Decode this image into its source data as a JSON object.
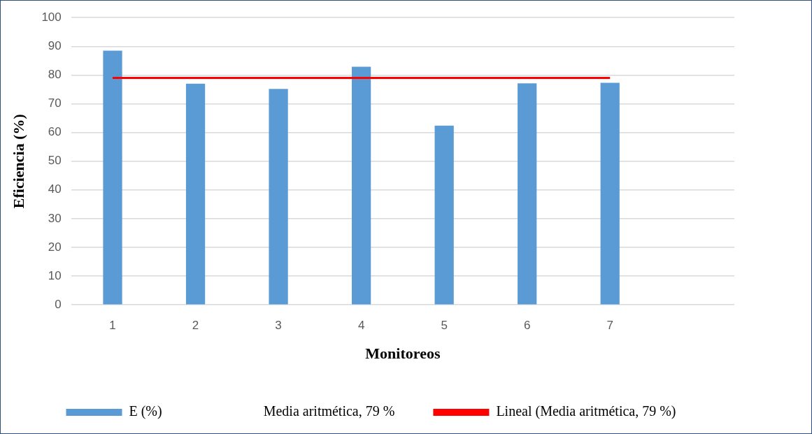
{
  "chart_data": {
    "type": "bar",
    "xlabel": "Monitoreos",
    "ylabel": "Eficiencia (%)",
    "categories": [
      "1",
      "2",
      "3",
      "4",
      "5",
      "6",
      "7",
      null
    ],
    "series": [
      {
        "name": "E (%)",
        "color": "#5b9bd5",
        "values": [
          88.5,
          77,
          75.2,
          82.9,
          62.4,
          77.1,
          77.3,
          null
        ]
      },
      {
        "name": "Lineal (Media aritmética, 79 %)",
        "type": "line",
        "color": "#ff0000",
        "values": [
          79,
          79,
          79,
          79,
          79,
          79,
          79,
          null
        ]
      }
    ],
    "annotations": [
      "Media aritmética, 79 %"
    ],
    "ylim": [
      0,
      100
    ],
    "yticks": [
      0,
      10,
      20,
      30,
      40,
      50,
      60,
      70,
      80,
      90,
      100
    ],
    "grid": "y",
    "legend": "bottom",
    "marker": "none",
    "line_style": "solid"
  }
}
